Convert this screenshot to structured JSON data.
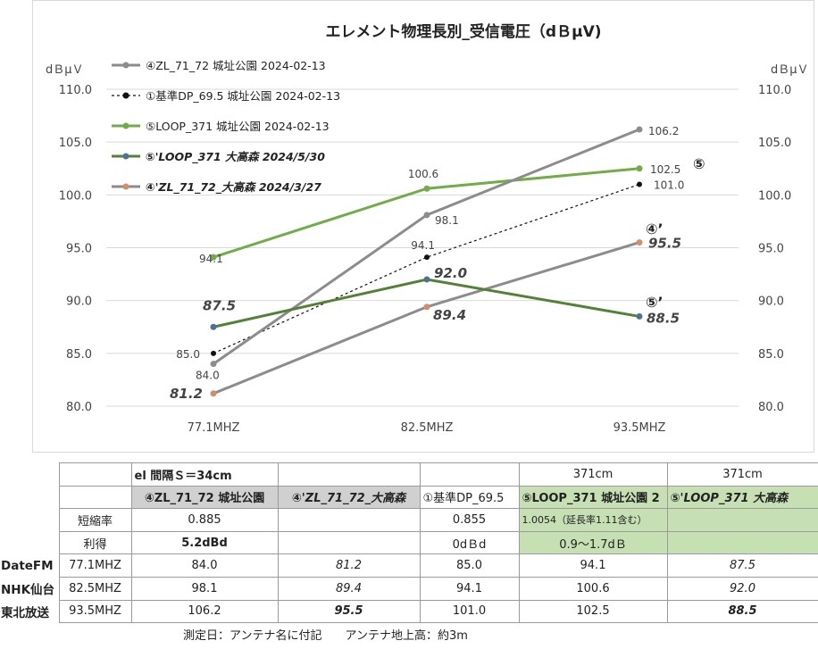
{
  "chart_data": {
    "type": "line",
    "title": "エレメント物理長別_受信電圧（dＢμV)",
    "ylabel_left": "dＢμＶ",
    "ylabel_right": "dＢμＶ",
    "ylim": [
      80,
      110
    ],
    "yticks": [
      "80.0",
      "85.0",
      "90.0",
      "95.0",
      "100.0",
      "105.0",
      "110.0"
    ],
    "categories": [
      "77.1MHZ",
      "82.5MHZ",
      "93.5MHZ"
    ],
    "series": [
      {
        "name": "④ZL_71_72 城址公園 2024-02-13",
        "values": [
          84.0,
          98.1,
          106.2
        ],
        "labels": [
          "84.0",
          "98.1",
          "106.2"
        ],
        "color": "#8c8c8c",
        "style": "solid",
        "italic": false
      },
      {
        "name": "①基準DP_69.5 城址公園 2024-02-13",
        "values": [
          85.0,
          94.1,
          101.0
        ],
        "labels": [
          "85.0",
          "94.1",
          "101.0"
        ],
        "color": "#111111",
        "style": "dashed",
        "italic": false
      },
      {
        "name": "⑤LOOP_371 城址公園 2024-02-13",
        "values": [
          94.1,
          100.6,
          102.5
        ],
        "labels": [
          "94.1",
          "100.6",
          "102.5"
        ],
        "color": "#70ad47",
        "style": "solid",
        "italic": false
      },
      {
        "name": "⑤'LOOP_371  大高森    2024/5/30",
        "values": [
          87.5,
          92.0,
          88.5
        ],
        "labels": [
          "87.5",
          "92.0",
          "88.5"
        ],
        "color": "#548235",
        "marker": "#4a7394",
        "style": "solid",
        "italic": true
      },
      {
        "name": "④'ZL_71_72_大高森    2024/3/27",
        "values": [
          81.2,
          89.4,
          95.5
        ],
        "labels": [
          "81.2",
          "89.4",
          "95.5"
        ],
        "color": "#8c8c8c",
        "marker": "#d48c6a",
        "style": "solid",
        "italic": true
      }
    ],
    "annotations": [
      "⑤",
      "④’",
      "⑤’"
    ]
  },
  "table": {
    "row1": {
      "c1": "el 間隔Ｓ＝34cm",
      "c4": "371cm",
      "c5": "371cm"
    },
    "row2": {
      "c1": "④ZL_71_72 城址公園",
      "c2": "④'ZL_71_72_大高森",
      "c3": "①基準DP_69.5",
      "c4": "⑤LOOP_371 城址公園 2",
      "c5": "⑤'LOOP_371  大高森"
    },
    "row3": {
      "label": "短縮率",
      "c1": "0.885",
      "c3": "0.855",
      "c4": "1.0054（延長率1.11含む）"
    },
    "row4": {
      "label": "利得",
      "c1": "5.2dBd",
      "c3": "0dＢd",
      "c4": "0.9～1.7dＢ"
    },
    "rows": [
      {
        "station": "DateFM",
        "freq": "77.1MHZ",
        "v1": "84.0",
        "v2": "81.2",
        "v3": "85.0",
        "v4": "94.1",
        "v5": "87.5"
      },
      {
        "station": "NHK仙台",
        "freq": "82.5MHZ",
        "v1": "98.1",
        "v2": "89.4",
        "v3": "94.1",
        "v4": "100.6",
        "v5": "92.0"
      },
      {
        "station": "東北放送",
        "freq": "93.5MHZ",
        "v1": "106.2",
        "v2": "95.5",
        "v3": "101.0",
        "v4": "102.5",
        "v5": "88.5"
      }
    ]
  },
  "footnote": "測定日：アンテナ名に付記　　アンテナ地上高：約3m"
}
